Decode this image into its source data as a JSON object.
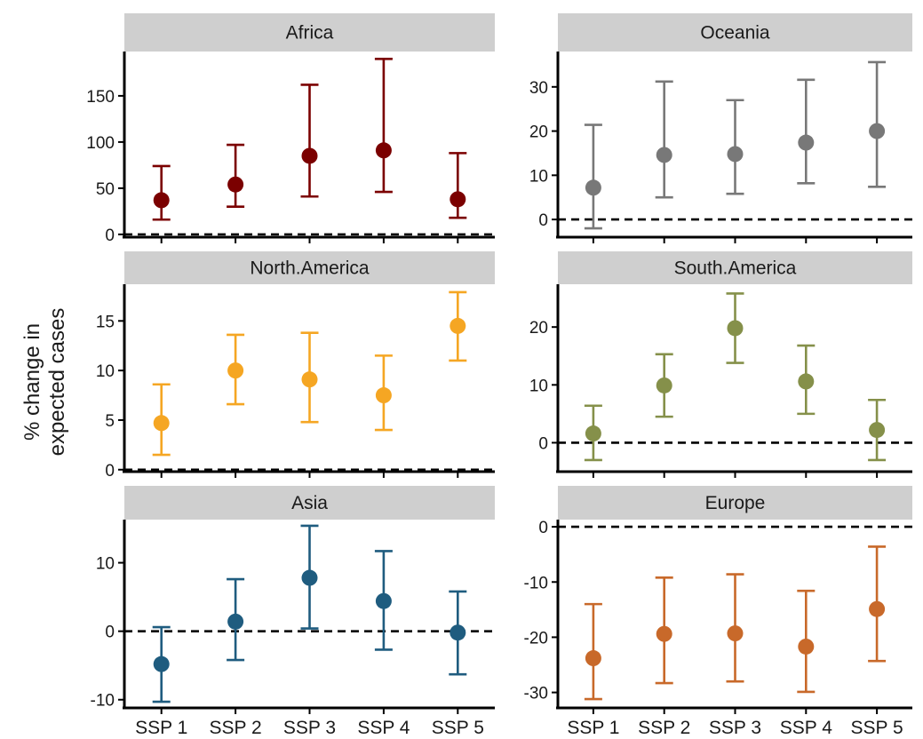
{
  "ylabel_lines": [
    "% change in",
    "expected cases"
  ],
  "chart_data": [
    {
      "type": "errorbar",
      "title": "Africa",
      "color": "#7b0000",
      "categories": [
        "SSP 1",
        "SSP 2",
        "SSP 3",
        "SSP 4",
        "SSP 5"
      ],
      "values": [
        37,
        54,
        85,
        91,
        38
      ],
      "lower": [
        16,
        30,
        41,
        46,
        18
      ],
      "upper": [
        74,
        97,
        162,
        190,
        88
      ],
      "ylim": [
        -3,
        198
      ],
      "yticks": [
        0,
        50,
        100,
        150
      ],
      "ytick_labels": [
        "0",
        "50",
        "100",
        "150"
      ],
      "reference_line": 0,
      "xticks_shown": false
    },
    {
      "type": "errorbar",
      "title": "Oceania",
      "color": "#787878",
      "categories": [
        "SSP 1",
        "SSP 2",
        "SSP 3",
        "SSP 4",
        "SSP 5"
      ],
      "values": [
        7.2,
        14.6,
        14.8,
        17.4,
        20.0
      ],
      "lower": [
        -2,
        5,
        5.8,
        8.2,
        7.4
      ],
      "upper": [
        21.4,
        31.2,
        27.0,
        31.6,
        35.6
      ],
      "ylim": [
        -4,
        38
      ],
      "yticks": [
        0,
        10,
        20,
        30
      ],
      "ytick_labels": [
        "0",
        "10",
        "20",
        "30"
      ],
      "reference_line": 0,
      "xticks_shown": false
    },
    {
      "type": "errorbar",
      "title": "North.America",
      "color": "#f5a623",
      "categories": [
        "SSP 1",
        "SSP 2",
        "SSP 3",
        "SSP 4",
        "SSP 5"
      ],
      "values": [
        4.7,
        10.0,
        9.1,
        7.5,
        14.5
      ],
      "lower": [
        1.5,
        6.6,
        4.8,
        4.0,
        11.0
      ],
      "upper": [
        8.6,
        13.6,
        13.8,
        11.5,
        17.9
      ],
      "ylim": [
        -0.2,
        18.7
      ],
      "yticks": [
        0,
        5,
        10,
        15
      ],
      "ytick_labels": [
        "0",
        "5",
        "10",
        "15"
      ],
      "reference_line": 0,
      "xticks_shown": false
    },
    {
      "type": "errorbar",
      "title": "South.America",
      "color": "#85904a",
      "categories": [
        "SSP 1",
        "SSP 2",
        "SSP 3",
        "SSP 4",
        "SSP 5"
      ],
      "values": [
        1.6,
        9.9,
        19.8,
        10.6,
        2.2
      ],
      "lower": [
        -3,
        4.5,
        13.8,
        5.0,
        -3
      ],
      "upper": [
        6.4,
        15.3,
        25.8,
        16.8,
        7.4
      ],
      "ylim": [
        -5,
        27.4
      ],
      "yticks": [
        0,
        10,
        20
      ],
      "ytick_labels": [
        "0",
        "10",
        "20"
      ],
      "reference_line": 0,
      "xticks_shown": false
    },
    {
      "type": "errorbar",
      "title": "Asia",
      "color": "#1f5c7f",
      "categories": [
        "SSP 1",
        "SSP 2",
        "SSP 3",
        "SSP 4",
        "SSP 5"
      ],
      "values": [
        -4.8,
        1.4,
        7.8,
        4.4,
        -0.2
      ],
      "lower": [
        -10.3,
        -4.2,
        0.4,
        -2.7,
        -6.3
      ],
      "upper": [
        0.6,
        7.6,
        15.4,
        11.7,
        5.8
      ],
      "ylim": [
        -11.2,
        16.3
      ],
      "yticks": [
        -10,
        0,
        10
      ],
      "ytick_labels": [
        "-10",
        "0",
        "10"
      ],
      "reference_line": 0,
      "xticks_shown": true
    },
    {
      "type": "errorbar",
      "title": "Europe",
      "color": "#c8692a",
      "categories": [
        "SSP 1",
        "SSP 2",
        "SSP 3",
        "SSP 4",
        "SSP 5"
      ],
      "values": [
        -23.8,
        -19.4,
        -19.3,
        -21.7,
        -14.9
      ],
      "lower": [
        -31.2,
        -28.3,
        -28.0,
        -29.9,
        -24.3
      ],
      "upper": [
        -14.0,
        -9.2,
        -8.6,
        -11.6,
        -3.6
      ],
      "ylim": [
        -32.8,
        1.3
      ],
      "yticks": [
        -30,
        -20,
        -10,
        0
      ],
      "ytick_labels": [
        "-30",
        "-20",
        "-10",
        "0"
      ],
      "reference_line": 0,
      "xticks_shown": true
    }
  ]
}
